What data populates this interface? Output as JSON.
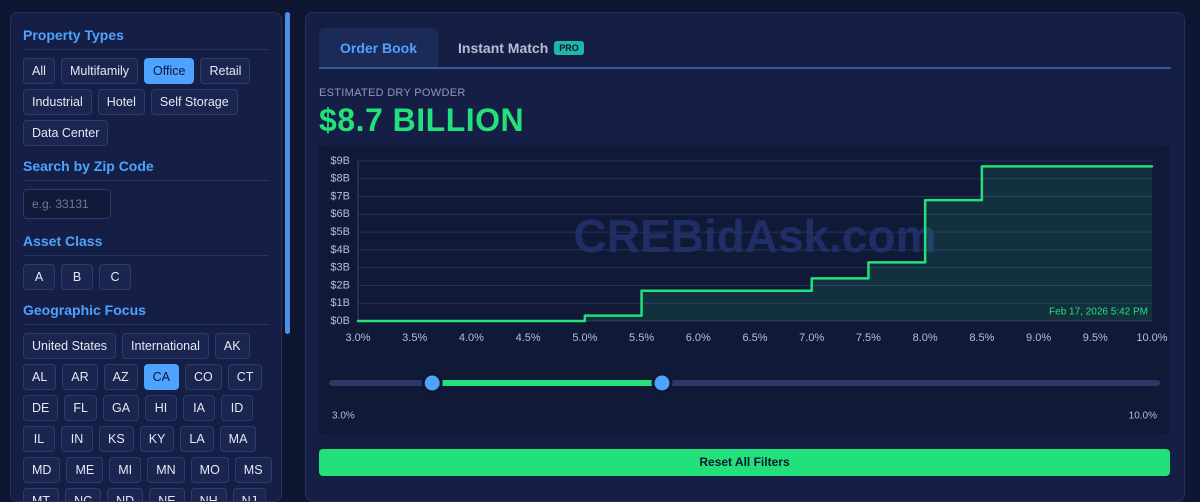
{
  "sidebar": {
    "sections": [
      {
        "title": "Property Types",
        "options": [
          "All",
          "Multifamily",
          "Office",
          "Retail",
          "Industrial",
          "Hotel",
          "Self Storage",
          "Data Center"
        ],
        "selected": [
          2
        ]
      },
      {
        "title": "Search by Zip Code",
        "placeholder": "e.g. 33131"
      },
      {
        "title": "Asset Class",
        "options": [
          "A",
          "B",
          "C"
        ]
      },
      {
        "title": "Geographic Focus",
        "options": [
          "United States",
          "International",
          "AK",
          "AL",
          "AR",
          "AZ",
          "CA",
          "CO",
          "CT",
          "DE",
          "FL",
          "GA",
          "HI",
          "IA",
          "ID",
          "IL",
          "IN",
          "KS",
          "KY",
          "LA",
          "MA",
          "MD",
          "ME",
          "MI",
          "MN",
          "MO",
          "MS",
          "MT",
          "NC",
          "ND",
          "NE",
          "NH",
          "NJ"
        ],
        "selected": [
          6
        ]
      }
    ]
  },
  "tabs": [
    {
      "label": "Order Book",
      "active": true
    },
    {
      "label": "Instant Match",
      "badge": "PRO"
    }
  ],
  "metric": {
    "label": "ESTIMATED DRY POWDER",
    "value": "$8.7 BILLION"
  },
  "chart_data": {
    "type": "step",
    "watermark": "CREBidAsk.com",
    "annotation": "Feb 17, 2026 5:42 PM",
    "x": [
      3.0,
      5.0,
      5.5,
      7.0,
      7.5,
      8.0,
      8.5
    ],
    "values": [
      0,
      0.3,
      1.7,
      2.4,
      3.3,
      6.8,
      8.7
    ],
    "color": "#22e07a",
    "xlim": [
      3.0,
      10.0
    ],
    "xticks": [
      {
        "value": 3.0,
        "label": "3.0%"
      },
      {
        "value": 3.5,
        "label": "3.5%"
      },
      {
        "value": 4.0,
        "label": "4.0%"
      },
      {
        "value": 4.5,
        "label": "4.5%"
      },
      {
        "value": 5.0,
        "label": "5.0%"
      },
      {
        "value": 5.5,
        "label": "5.5%"
      },
      {
        "value": 6.0,
        "label": "6.0%"
      },
      {
        "value": 6.5,
        "label": "6.5%"
      },
      {
        "value": 7.0,
        "label": "7.0%"
      },
      {
        "value": 7.5,
        "label": "7.5%"
      },
      {
        "value": 8.0,
        "label": "8.0%"
      },
      {
        "value": 8.5,
        "label": "8.5%"
      },
      {
        "value": 9.0,
        "label": "9.0%"
      },
      {
        "value": 9.5,
        "label": "9.5%"
      },
      {
        "value": 10.0,
        "label": "10.0%"
      }
    ],
    "ylim": [
      0,
      9
    ],
    "yticks": [
      {
        "value": 0,
        "label": "$0B"
      },
      {
        "value": 1,
        "label": "$1B"
      },
      {
        "value": 2,
        "label": "$2B"
      },
      {
        "value": 3,
        "label": "$3B"
      },
      {
        "value": 4,
        "label": "$4B"
      },
      {
        "value": 5,
        "label": "$5B"
      },
      {
        "value": 6,
        "label": "$6B"
      },
      {
        "value": 7,
        "label": "$7B"
      },
      {
        "value": 8,
        "label": "$8B"
      },
      {
        "value": 9,
        "label": "$9B"
      }
    ],
    "grid": true
  },
  "slider": {
    "range": [
      {
        "value": 3.0,
        "label": "3.0%"
      },
      {
        "value": 10.0,
        "label": "10.0%"
      }
    ],
    "handles": [
      3.85,
      5.8
    ]
  },
  "reset_button": "Reset All Filters"
}
